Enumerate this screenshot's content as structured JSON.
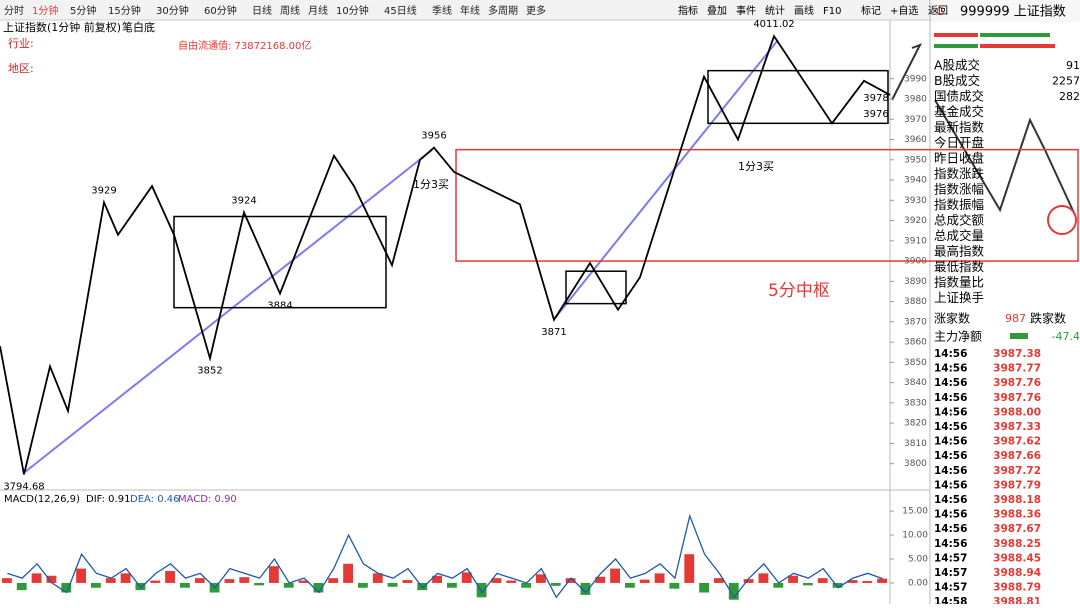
{
  "toolbar": {
    "tabs": [
      "分时",
      "1分钟",
      "5分钟",
      "15分钟",
      "30分钟",
      "60分钟",
      "日线",
      "周线",
      "月线",
      "10分钟",
      "45日线",
      "季线",
      "年线",
      "多周期",
      "更多"
    ],
    "tools": [
      "指标",
      "叠加",
      "事件",
      "统计",
      "画线",
      "F10",
      "标记",
      "+自选",
      "返回"
    ]
  },
  "chart_data": {
    "type": "stroke",
    "title": "上证指数(1分钟 前复权)",
    "style": "笔白底",
    "free_float": "自由流通值: 73872168.00亿",
    "industry": "行业:",
    "region": "地区:",
    "xlim": [
      0,
      445
    ],
    "ylim": [
      3787,
      4019
    ],
    "yticks": [
      3800,
      3810,
      3820,
      3830,
      3840,
      3850,
      3860,
      3870,
      3880,
      3890,
      3900,
      3910,
      3920,
      3930,
      3940,
      3950,
      3960,
      3970,
      3980,
      3990
    ],
    "pen": {
      "color": "#000000",
      "x": [
        0,
        12,
        25,
        34,
        52,
        59,
        76,
        87,
        105,
        122,
        140,
        167,
        177,
        196,
        210,
        217,
        227,
        260,
        277,
        295,
        309,
        320,
        352,
        369,
        387,
        416,
        432,
        445
      ],
      "values": [
        3858,
        3794.68,
        3848,
        3826,
        3929,
        3913,
        3937,
        3913,
        3852,
        3924,
        3884,
        3952,
        3937,
        3898,
        3950,
        3956,
        3944,
        3928,
        3871,
        3899,
        3876,
        3892,
        3991,
        3960,
        4011.02,
        3968,
        3989,
        3982
      ]
    },
    "pivots": [
      {
        "x": 12,
        "value": 3794.68
      },
      {
        "x": 52,
        "value": 3929
      },
      {
        "x": 105,
        "value": 3852
      },
      {
        "x": 122,
        "value": 3924
      },
      {
        "x": 140,
        "value": 3884
      },
      {
        "x": 217,
        "value": 3956
      },
      {
        "x": 277,
        "value": 3871
      },
      {
        "x": 387,
        "value": 4011.02
      },
      {
        "x": 438,
        "value": 3978
      },
      {
        "x": 438,
        "value": 3976
      }
    ],
    "boxes": [
      {
        "color": "#000000",
        "x": [
          87,
          193
        ],
        "y": [
          3877,
          3922
        ]
      },
      {
        "color": "#e53935",
        "x": [
          228,
          539
        ],
        "y": [
          3900,
          3955
        ]
      },
      {
        "color": "#000000",
        "x": [
          283,
          313
        ],
        "y": [
          3879,
          3895
        ]
      },
      {
        "color": "#000000",
        "x": [
          354,
          444
        ],
        "y": [
          3968,
          3994
        ]
      }
    ],
    "notes": [
      "1分3买",
      "1分3买",
      "5分中枢"
    ],
    "macd": {
      "label": "MACD(12,26,9)",
      "dif": "DIF: 0.91",
      "dea": "DEA: 0.46",
      "macd": "MACD: 0.90",
      "ylim": [
        -4.4,
        19
      ],
      "yticks": [
        {
          "value": 0,
          "label": "0.00"
        },
        {
          "value": 5,
          "label": "5.00"
        },
        {
          "value": 10,
          "label": "10.00"
        },
        {
          "value": 15,
          "label": "15.00"
        }
      ],
      "hist": [
        1,
        -1.5,
        2,
        1.5,
        -2,
        3,
        -1,
        1,
        2,
        -1.5,
        0.5,
        2.5,
        -1,
        1,
        -2,
        0.8,
        1.2,
        -0.5,
        3.5,
        -1,
        0.5,
        -2,
        1,
        4,
        -1,
        2,
        -0.8,
        0.6,
        -1.5,
        1.5,
        -1,
        2.2,
        -3,
        1,
        0.5,
        -1,
        1.8,
        -0.6,
        1,
        -2.5,
        1.3,
        3,
        -1,
        0.7,
        2,
        -1.2,
        6,
        -2,
        1,
        -3.5,
        0.8,
        2,
        -1,
        1.5,
        -0.5,
        1,
        -1,
        0.6,
        0.4,
        0.9
      ],
      "dif_values": [
        2,
        1,
        4,
        0,
        -2,
        6,
        2,
        1,
        3,
        -1,
        2,
        4,
        1,
        2,
        -1,
        3,
        2,
        1,
        5,
        0,
        1,
        -2,
        3,
        10,
        4,
        2,
        1,
        3,
        -1,
        2,
        1,
        3,
        -2,
        2,
        1,
        0,
        3,
        -3,
        1,
        -2,
        2,
        5,
        1,
        2,
        4,
        1,
        14,
        6,
        2,
        -3,
        1,
        4,
        0,
        2,
        1,
        3,
        -1,
        1,
        2,
        0.91
      ],
      "dif_color": "#1e5aa8"
    }
  },
  "panel": {
    "title": "999999 上证指数",
    "rows": [
      "A股成交",
      "B股成交",
      "国债成交",
      "基金成交",
      "最新指数",
      "今日开盘",
      "昨日收盘",
      "指数涨跌",
      "指数涨幅",
      "指数振幅",
      "总成交额",
      "总成交量",
      "最高指数",
      "最低指数",
      "指数量比",
      "上证换手"
    ],
    "row_values": [
      "91",
      "2257",
      "282"
    ],
    "up_label": "涨家数",
    "up_count": "987",
    "down_label": "跌家数",
    "flow_label": "主力净额",
    "flow_value": "-47.4",
    "trades": [
      [
        "14:56",
        "3987.38"
      ],
      [
        "14:56",
        "3987.77"
      ],
      [
        "14:56",
        "3987.76"
      ],
      [
        "14:56",
        "3987.76"
      ],
      [
        "14:56",
        "3988.00"
      ],
      [
        "14:56",
        "3987.33"
      ],
      [
        "14:56",
        "3987.62"
      ],
      [
        "14:56",
        "3987.66"
      ],
      [
        "14:56",
        "3987.72"
      ],
      [
        "14:56",
        "3987.79"
      ],
      [
        "14:56",
        "3988.18"
      ],
      [
        "14:56",
        "3988.36"
      ],
      [
        "14:56",
        "3987.67"
      ],
      [
        "14:56",
        "3988.25"
      ],
      [
        "14:57",
        "3988.45"
      ],
      [
        "14:57",
        "3988.94"
      ],
      [
        "14:57",
        "3988.79"
      ],
      [
        "14:58",
        "3988.81"
      ]
    ]
  }
}
